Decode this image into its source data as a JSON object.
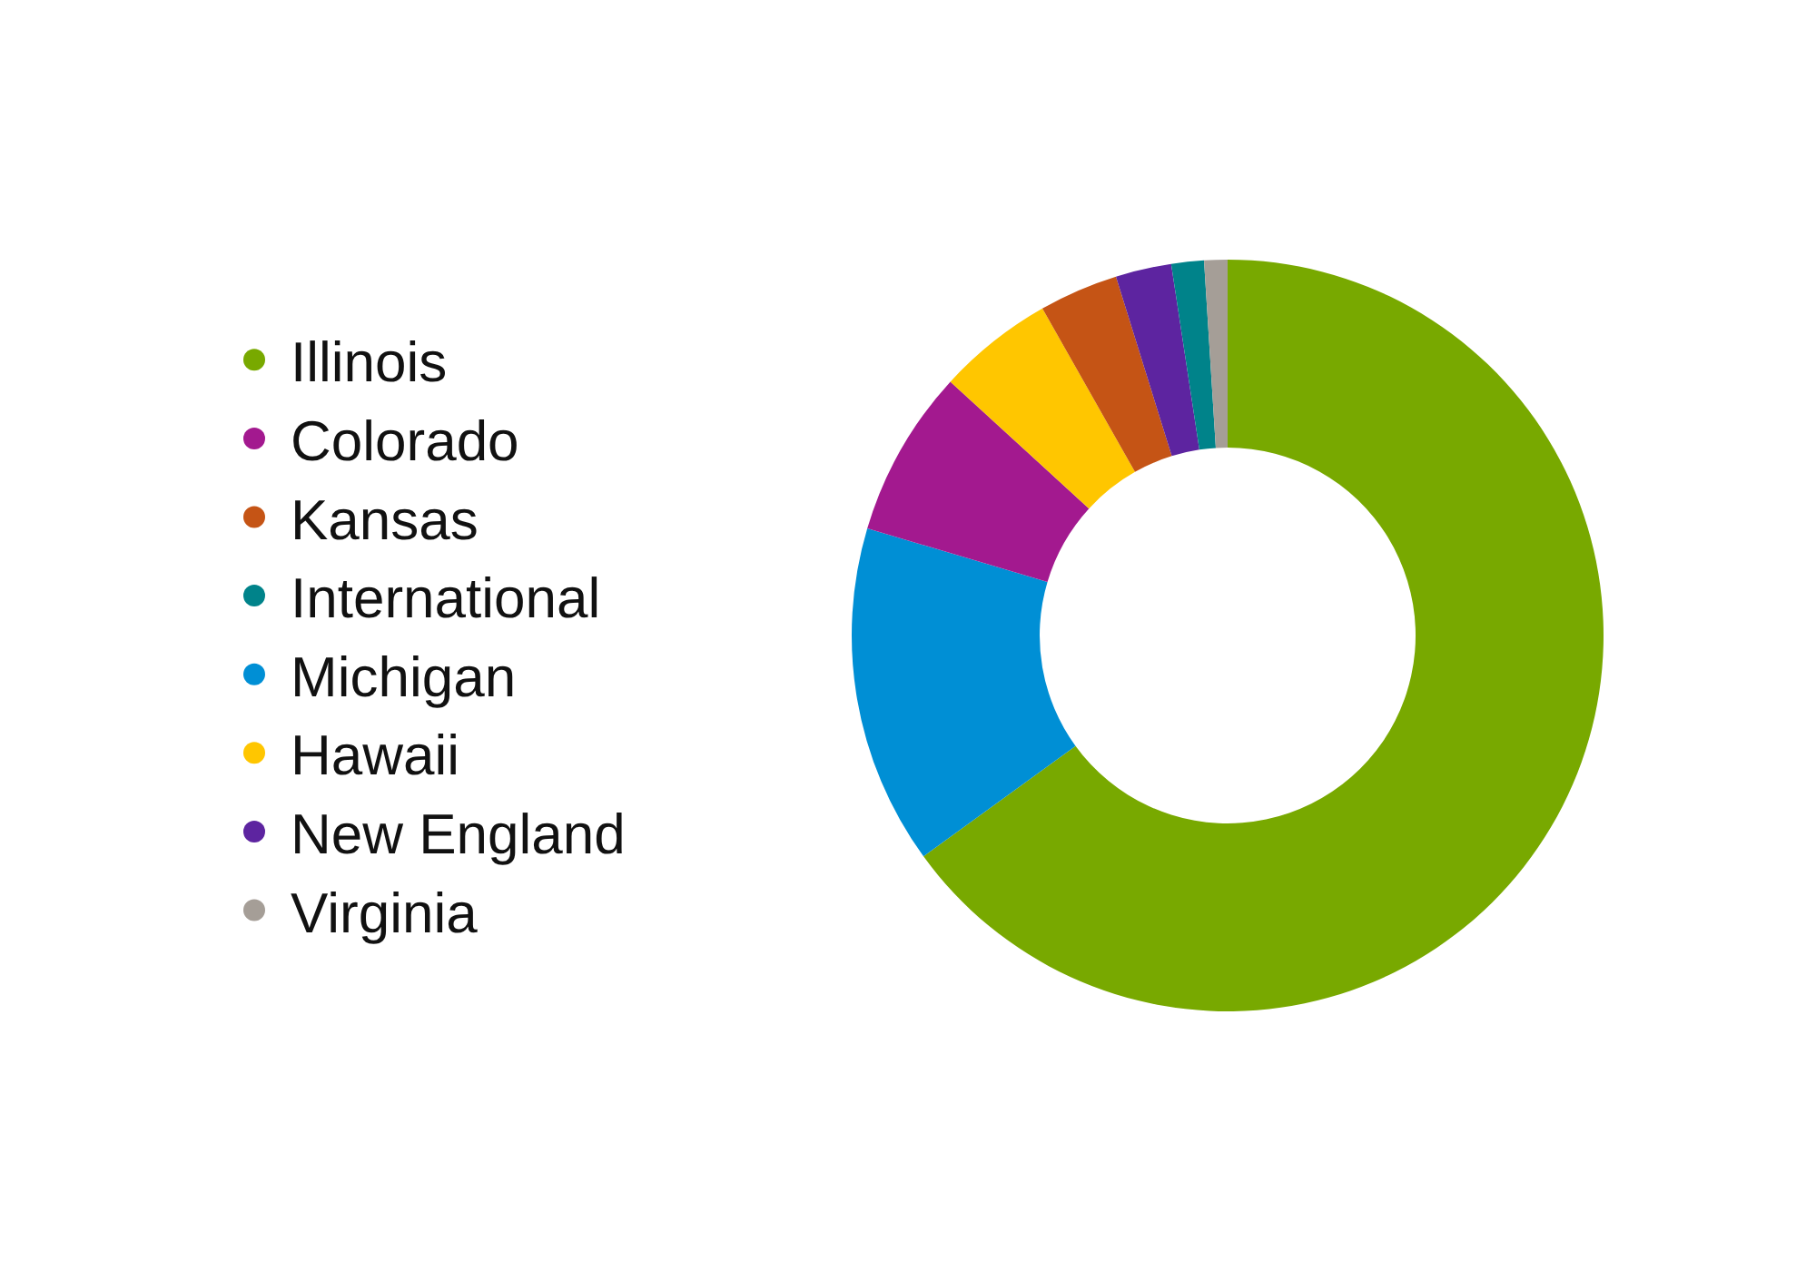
{
  "chart_data": {
    "type": "donut",
    "legend": "left",
    "categories": [
      "Illinois",
      "Colorado",
      "Kansas",
      "International",
      "Michigan",
      "Hawaii",
      "New England",
      "Virginia"
    ],
    "values": [
      65,
      7.2,
      3.4,
      1.4,
      14.6,
      5,
      2.4,
      1
    ],
    "colors": [
      "#78a900",
      "#a3198f",
      "#c55415",
      "#00838a",
      "#008fd5",
      "#ffc600",
      "#5d24a0",
      "#a59e97"
    ]
  }
}
